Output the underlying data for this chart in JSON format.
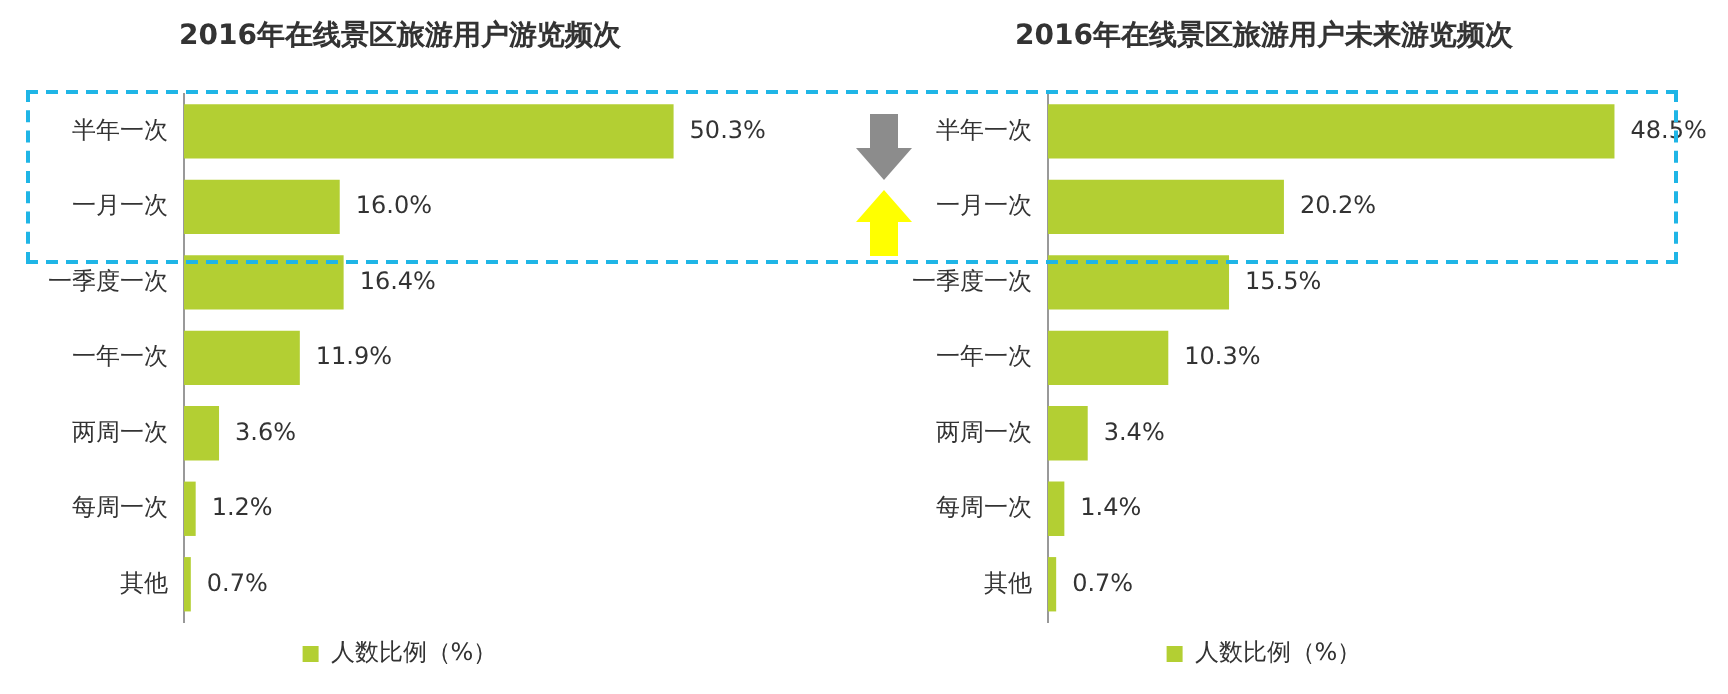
{
  "chart_data": [
    {
      "type": "bar",
      "orientation": "horizontal",
      "title": "2016年在线景区旅游用户游览频次",
      "categories": [
        "半年一次",
        "一月一次",
        "一季度一次",
        "一年一次",
        "两周一次",
        "每周一次",
        "其他"
      ],
      "legend": "bottom",
      "series": [
        {
          "name": "人数比例（%）",
          "color": "#b3cf33",
          "values": [
            50.3,
            16.0,
            16.4,
            11.9,
            3.6,
            1.2,
            0.7
          ],
          "value_labels": [
            "50.3%",
            "16.0%",
            "16.4%",
            "11.9%",
            "3.6%",
            "1.2%",
            "0.7%"
          ]
        }
      ]
    },
    {
      "type": "bar",
      "orientation": "horizontal",
      "title": "2016年在线景区旅游用户未来游览频次",
      "categories": [
        "半年一次",
        "一月一次",
        "一季度一次",
        "一年一次",
        "两周一次",
        "每周一次",
        "其他"
      ],
      "legend": "bottom",
      "series": [
        {
          "name": "人数比例（%）",
          "color": "#b3cf33",
          "values": [
            48.5,
            20.2,
            15.5,
            10.3,
            3.4,
            1.4,
            0.7
          ],
          "value_labels": [
            "48.5%",
            "20.2%",
            "15.5%",
            "10.3%",
            "3.4%",
            "1.4%",
            "0.7%"
          ]
        }
      ]
    }
  ]
}
